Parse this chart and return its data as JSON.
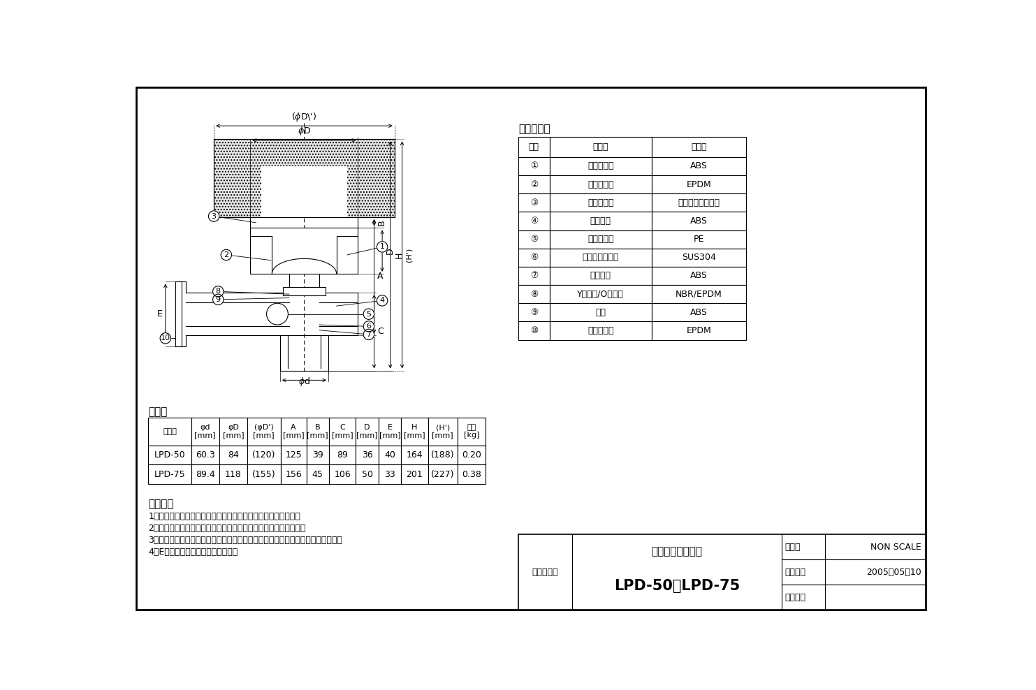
{
  "bg_color": "#ffffff",
  "materials_title": "使用材料表",
  "materials_headers": [
    "番号",
    "名　称",
    "材　質"
  ],
  "materials_data": [
    [
      "①",
      "通気弁本体",
      "ABS"
    ],
    [
      "②",
      "ゴムシール",
      "EPDM"
    ],
    [
      "③",
      "防寒カバー",
      "発泡ポリスチレン"
    ],
    [
      "④",
      "接続管部",
      "ABS"
    ],
    [
      "⑤",
      "止水ボール",
      "PE"
    ],
    [
      "⑥",
      "止水ボール重り",
      "SUS304"
    ],
    [
      "⑦",
      "袋ナット",
      "ABS"
    ],
    [
      "⑧",
      "Yリング/Oリング",
      "NBR/EPDM"
    ],
    [
      "⑨",
      "カゴ",
      "ABS"
    ],
    [
      "⑩",
      "ゴムリング",
      "EPDM"
    ]
  ],
  "spec_title": "仕様表",
  "spec_headers": [
    "型　番",
    "φd\n[mm]",
    "φD\n[mm]",
    "(φD')\n[mm]",
    "A\n[mm]",
    "B\n[mm]",
    "C\n[mm]",
    "D\n[mm]",
    "E\n[mm]",
    "H\n[mm]",
    "(H')\n[mm]",
    "質量\n[kg]"
  ],
  "spec_data": [
    [
      "LPD-50",
      "60.3",
      "84",
      "(120)",
      "125",
      "39",
      "89",
      "36",
      "40",
      "164",
      "(188)",
      "0.20"
    ],
    [
      "LPD-75",
      "89.4",
      "118",
      "(155)",
      "156",
      "45",
      "106",
      "50",
      "33",
      "201",
      "(227)",
      "0.38"
    ]
  ],
  "notes_title": "特記事項",
  "notes": [
    "1．（　）内の寸法は、付属品の防寒カバー取付時の寸法です。",
    "2．防寒カバーは、結露防止のため取付けたまま使用して下さい。",
    "3．ドルゴ低位通気弁を隆べい部に設置する場合は、必ず点検口を設けて下さい。",
    "4．E寸法は、配管差込み寸法です。"
  ],
  "product_name": "ドルゴ低位通気弁",
  "brand_label": "品名・型番",
  "title": "LPD-50，LPD-75",
  "scale_label": "縮　尺",
  "scale_value": "NON SCALE",
  "date_label": "作成日付",
  "date_value": "2005．05．10",
  "rev_label": "変更日付"
}
